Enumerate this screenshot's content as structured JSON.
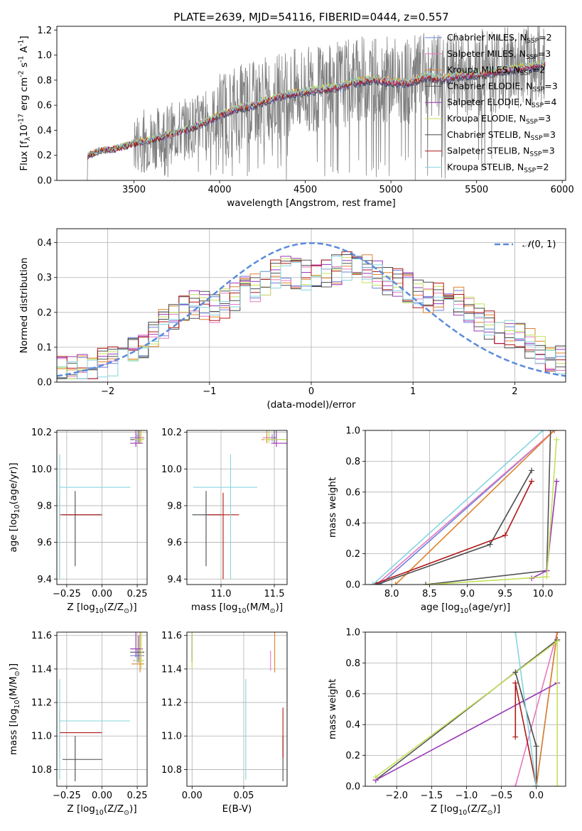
{
  "figure": {
    "title": "PLATE=2639, MJD=54116, FIBERID=0444, z=0.557"
  },
  "colors": {
    "Chabrier MILES": "#6a83d8",
    "Salpeter MILES": "#e879c0",
    "Kroupa MILES": "#e0822c",
    "Chabrier ELODIE": "#555555",
    "Salpeter ELODIE": "#9a36b8",
    "Kroupa ELODIE": "#c3e15a",
    "Chabrier STELIB": "#4a4a4a",
    "Salpeter STELIB": "#b01818",
    "Kroupa STELIB": "#86d4df",
    "data": "#808080",
    "normal": "#5b8bdb"
  },
  "chart_data": [
    {
      "id": "spectrum",
      "type": "line",
      "title": "PLATE=2639, MJD=54116, FIBERID=0444, z=0.557",
      "xlabel": "wavelength [Angstrom, rest frame]",
      "ylabel": "Flux [f$_\\lambda$10$^{-17}$ erg cm$^{-2}$ s$^{-1}$ A$^{-1}$]",
      "xlim": [
        3050,
        6020
      ],
      "ylim": [
        0,
        1.23
      ],
      "xticks": [
        3500,
        4000,
        4500,
        5000,
        5500,
        6000
      ],
      "yticks": [
        0.0,
        0.2,
        0.4,
        0.6,
        0.8,
        1.0,
        1.2
      ],
      "grid": false,
      "legend_position": "top-right",
      "legend": [
        {
          "series": "Chabrier MILES",
          "label": "Chabrier MILES, N",
          "sub": "SSP",
          "tail": "=2"
        },
        {
          "series": "Salpeter MILES",
          "label": "Salpeter MILES, N",
          "sub": "SSP",
          "tail": "=3"
        },
        {
          "series": "Kroupa MILES",
          "label": "Kroupa MILES, N",
          "sub": "SSP",
          "tail": "=2"
        },
        {
          "series": "Chabrier ELODIE",
          "label": "Chabrier ELODIE, N",
          "sub": "SSP",
          "tail": "=3"
        },
        {
          "series": "Salpeter ELODIE",
          "label": "Salpeter ELODIE, N",
          "sub": "SSP",
          "tail": "=4"
        },
        {
          "series": "Kroupa ELODIE",
          "label": "Kroupa ELODIE, N",
          "sub": "SSP",
          "tail": "=3"
        },
        {
          "series": "Chabrier STELIB",
          "label": "Chabrier STELIB, N",
          "sub": "SSP",
          "tail": "=3"
        },
        {
          "series": "Salpeter STELIB",
          "label": "Salpeter STELIB, N",
          "sub": "SSP",
          "tail": "=3"
        },
        {
          "series": "Kroupa STELIB",
          "label": "Kroupa STELIB, N",
          "sub": "SSP",
          "tail": "=2"
        }
      ],
      "model_continuum": {
        "x": [
          3230,
          3300,
          3400,
          3500,
          3600,
          3700,
          3800,
          3900,
          4000,
          4100,
          4200,
          4300,
          4400,
          4500,
          4600,
          4700,
          4800,
          4900,
          5000,
          5100,
          5200,
          5300,
          5400,
          5500,
          5600,
          5700,
          5800,
          5900
        ],
        "y": [
          0.2,
          0.24,
          0.26,
          0.3,
          0.33,
          0.37,
          0.41,
          0.46,
          0.53,
          0.58,
          0.61,
          0.66,
          0.7,
          0.72,
          0.74,
          0.76,
          0.8,
          0.82,
          0.8,
          0.79,
          0.84,
          0.82,
          0.85,
          0.86,
          0.88,
          0.9,
          0.92,
          0.94
        ]
      },
      "data_line": {
        "x_range": [
          3220,
          5900
        ],
        "note": "noisy observed spectrum, gray"
      }
    },
    {
      "id": "residuals",
      "type": "histogram",
      "xlabel": "(data-model)/error",
      "ylabel": "Normed distribution",
      "xlim": [
        -2.5,
        2.5
      ],
      "ylim": [
        0,
        0.44
      ],
      "xticks": [
        -2,
        -1,
        0,
        1,
        2
      ],
      "yticks": [
        0.0,
        0.1,
        0.2,
        0.3,
        0.4
      ],
      "grid": true,
      "legend": [
        {
          "label": "N(0, 1)",
          "pre": "𝒩",
          "rest": "(0, 1)"
        }
      ],
      "legend_position": "top-right",
      "bin_width": 0.1,
      "base_shape": {
        "x": [
          -2.5,
          -2.3,
          -2.1,
          -1.9,
          -1.7,
          -1.5,
          -1.3,
          -1.1,
          -0.9,
          -0.7,
          -0.5,
          -0.3,
          -0.1,
          0.1,
          0.3,
          0.5,
          0.7,
          0.9,
          1.1,
          1.3,
          1.5,
          1.7,
          1.9,
          2.1,
          2.3,
          2.5
        ],
        "y": [
          0.03,
          0.03,
          0.05,
          0.06,
          0.1,
          0.15,
          0.21,
          0.22,
          0.21,
          0.26,
          0.28,
          0.32,
          0.31,
          0.3,
          0.33,
          0.33,
          0.3,
          0.28,
          0.24,
          0.25,
          0.22,
          0.17,
          0.14,
          0.12,
          0.08,
          0.06
        ]
      },
      "normal_curve": {
        "mean": 0,
        "sigma": 1,
        "peak": 0.3989
      }
    },
    {
      "id": "age-vs-Z",
      "type": "scatter",
      "xlabel": "Z [log$_{10}$(Z/Z$_\\odot$)]",
      "ylabel": "age  [log$_{10}$(age/yr)]",
      "xlim": [
        -0.32,
        0.32
      ],
      "ylim": [
        9.37,
        10.21
      ],
      "xticks": [
        -0.25,
        0.0,
        0.25
      ],
      "yticks": [
        9.4,
        9.6,
        9.8,
        10.0,
        10.2
      ],
      "grid": true
    },
    {
      "id": "age-vs-mass",
      "type": "scatter",
      "xlabel": "mass [log$_{10}$(M/M$_\\odot$)]",
      "ylabel": "",
      "xlim": [
        10.68,
        11.62
      ],
      "ylim": [
        9.37,
        10.21
      ],
      "xticks": [
        11.0,
        11.5
      ],
      "yticks": [
        9.4,
        9.6,
        9.8,
        10.0,
        10.2
      ],
      "grid": true
    },
    {
      "id": "massweight-vs-age",
      "type": "line",
      "xlabel": "age  [log$_{10}$(age/yr)]",
      "ylabel": "mass weight",
      "xlim": [
        7.65,
        10.3
      ],
      "ylim": [
        0,
        1.0
      ],
      "xticks": [
        8.0,
        8.5,
        9.0,
        9.5,
        10.0
      ],
      "yticks": [
        0.0,
        0.2,
        0.4,
        0.6,
        0.8,
        1.0
      ],
      "grid": true
    },
    {
      "id": "mass-vs-Z",
      "type": "scatter",
      "xlabel": "Z [log$_{10}$(Z/Z$_\\odot$)]",
      "ylabel": "mass [log$_{10}$(M/M$_\\odot$)]",
      "xlim": [
        -0.32,
        0.32
      ],
      "ylim": [
        10.7,
        11.62
      ],
      "xticks": [
        -0.25,
        0.0,
        0.25
      ],
      "yticks": [
        10.8,
        11.0,
        11.2,
        11.4,
        11.6
      ],
      "grid": true
    },
    {
      "id": "mass-vs-EBV",
      "type": "scatter",
      "xlabel": "E(B-V)",
      "ylabel": "",
      "xlim": [
        -0.005,
        0.092
      ],
      "ylim": [
        10.7,
        11.62
      ],
      "xticks": [
        0.0,
        0.05
      ],
      "yticks": [
        10.8,
        11.0,
        11.2,
        11.4,
        11.6
      ],
      "grid": true
    },
    {
      "id": "massweight-vs-Z",
      "type": "line",
      "xlabel": "Z [log$_{10}$(Z/Z$_\\odot$)]",
      "ylabel": "mass weight",
      "xlim": [
        -2.45,
        0.42
      ],
      "ylim": [
        0,
        1.0
      ],
      "xticks": [
        -2.0,
        -1.5,
        -1.0,
        -0.5,
        0.0
      ],
      "yticks": [
        0.0,
        0.2,
        0.4,
        0.6,
        0.8,
        1.0
      ],
      "grid": true
    }
  ],
  "fits": [
    {
      "series": "Chabrier MILES",
      "Z": 0.25,
      "Z_err": [
        0.05,
        0.05
      ],
      "age": 10.17,
      "age_err": [
        0.02,
        0.02
      ],
      "mass": 11.48,
      "mass_err": [
        0.04,
        0.04
      ],
      "ebv": 0.0
    },
    {
      "series": "Salpeter MILES",
      "Z": 0.27,
      "Z_err": [
        0.05,
        0.03
      ],
      "age": 10.17,
      "age_err": [
        0.02,
        0.02
      ],
      "mass": 11.45,
      "mass_err": [
        0.06,
        0.06
      ],
      "ebv": 0.076
    },
    {
      "series": "Kroupa MILES",
      "Z": 0.27,
      "Z_err": [
        0.06,
        0.03
      ],
      "age": 10.16,
      "age_err": [
        0.02,
        0.17
      ],
      "mass": 11.43,
      "mass_err": [
        0.05,
        0.22
      ],
      "ebv": 0.08
    },
    {
      "series": "Chabrier ELODIE",
      "Z": 0.26,
      "Z_err": [
        0.06,
        0.04
      ],
      "age": 10.16,
      "age_err": [
        0.02,
        0.1
      ],
      "mass": 11.5,
      "mass_err": [
        0.06,
        0.1
      ],
      "ebv": 0.0
    },
    {
      "series": "Salpeter ELODIE",
      "Z": 0.24,
      "Z_err": [
        0.04,
        0.05
      ],
      "age": 10.14,
      "age_err": [
        0.02,
        0.23
      ],
      "mass": 11.52,
      "mass_err": [
        0.05,
        0.15
      ],
      "ebv": 0.0
    },
    {
      "series": "Kroupa ELODIE",
      "Z": 0.28,
      "Z_err": [
        0.05,
        0.02
      ],
      "age": 10.16,
      "age_err": [
        0.02,
        0.12
      ],
      "mass": 11.45,
      "mass_err": [
        0.05,
        0.2
      ],
      "ebv": 0.0
    },
    {
      "series": "Chabrier STELIB",
      "Z": -0.19,
      "Z_err": [
        0.09,
        0.19
      ],
      "age": 9.75,
      "age_err": [
        0.28,
        0.13
      ],
      "mass": 10.86,
      "mass_err": [
        0.13,
        0.14
      ],
      "ebv": 0.088
    },
    {
      "series": "Salpeter STELIB",
      "Z": -0.3,
      "Z_err": [
        0.0,
        0.3
      ],
      "age": 9.75,
      "age_err": [
        0.35,
        0.12
      ],
      "mass": 11.02,
      "mass_err": [
        0.15,
        0.15
      ],
      "ebv": 0.088
    },
    {
      "series": "Kroupa STELIB",
      "Z": -0.3,
      "Z_err": [
        0.0,
        0.5
      ],
      "age": 9.9,
      "age_err": [
        0.5,
        0.18
      ],
      "mass": 11.09,
      "mass_err": [
        0.35,
        0.25
      ],
      "ebv": 0.052
    }
  ],
  "mass_weight_curves": [
    {
      "series": "Chabrier MILES",
      "age": [
        7.85,
        10.15
      ],
      "w": [
        0.0,
        1.0
      ],
      "Z": [
        0.0,
        0.3
      ],
      "wZ": [
        0.0,
        1.0
      ]
    },
    {
      "series": "Salpeter MILES",
      "age": [
        7.8,
        10.15
      ],
      "w": [
        0.0,
        1.0
      ],
      "Z": [
        -0.3,
        0.3
      ],
      "wZ": [
        0.0,
        1.0
      ]
    },
    {
      "series": "Kroupa MILES",
      "age": [
        8.05,
        10.15
      ],
      "w": [
        0.0,
        1.0
      ],
      "Z": [
        0.0,
        0.3
      ],
      "wZ": [
        0.0,
        1.0
      ]
    },
    {
      "series": "Chabrier ELODIE",
      "age": [
        8.45,
        10.05,
        10.1
      ],
      "w": [
        0.0,
        0.09,
        1.0
      ],
      "Z": [
        -2.3,
        0.3
      ],
      "wZ": [
        0.04,
        0.95
      ]
    },
    {
      "series": "Salpeter ELODIE",
      "age": [
        9.85,
        10.05,
        10.18
      ],
      "w": [
        0.04,
        0.09,
        0.67
      ],
      "Z": [
        -2.3,
        0.3
      ],
      "wZ": [
        0.04,
        0.67
      ]
    },
    {
      "series": "Kroupa ELODIE",
      "age": [
        8.5,
        10.05,
        10.18
      ],
      "w": [
        0.0,
        0.05,
        0.94
      ],
      "Z": [
        -2.3,
        0.3,
        0.3
      ],
      "wZ": [
        0.06,
        0.94,
        0.0
      ]
    },
    {
      "series": "Chabrier STELIB",
      "age": [
        7.8,
        9.3,
        9.85
      ],
      "w": [
        0.0,
        0.26,
        0.74
      ],
      "Z": [
        -0.3,
        0.0,
        0.0
      ],
      "wZ": [
        0.74,
        0.26,
        0.0
      ]
    },
    {
      "series": "Salpeter STELIB",
      "age": [
        7.75,
        9.5,
        9.85
      ],
      "w": [
        0.0,
        0.32,
        0.67
      ],
      "Z": [
        -0.3,
        -0.3,
        0.0
      ],
      "wZ": [
        0.32,
        0.67,
        0.0
      ]
    },
    {
      "series": "Kroupa STELIB",
      "age": [
        7.75,
        10.0
      ],
      "w": [
        0.0,
        1.0
      ],
      "Z": [
        -0.3,
        0.0
      ],
      "wZ": [
        1.0,
        0.0
      ]
    }
  ]
}
